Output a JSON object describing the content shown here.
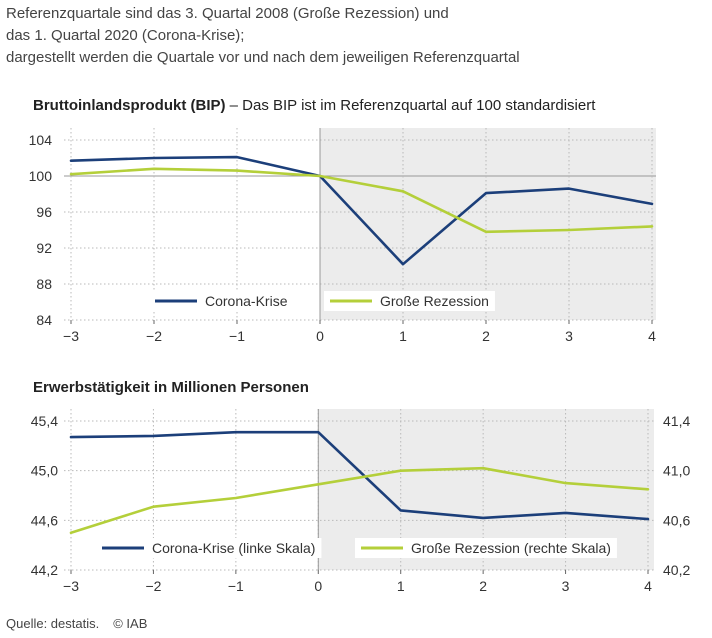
{
  "intro": {
    "line1": "Referenzquartale sind das 3. Quartal 2008 (Große Rezession) und",
    "line2": "das 1. Quartal 2020 (Corona-Krise);",
    "line3": "dargestellt werden die Quartale vor und nach dem jeweiligen Referenzquartal"
  },
  "colors": {
    "corona": "#1c3f7a",
    "rezession": "#b4cf3a",
    "shade": "#ececec",
    "grid": "#b9b9b9"
  },
  "chart_data": [
    {
      "type": "line",
      "title_bold": "Bruttoinlandsprodukt (BIP)",
      "title_rest": " – Das BIP ist im Referenzquartal auf 100 standardisiert",
      "x": [
        -3,
        -2,
        -1,
        0,
        1,
        2,
        3,
        4
      ],
      "x_tick_labels": [
        "−3",
        "−2",
        "−1",
        "0",
        "1",
        "2",
        "3",
        "4"
      ],
      "ylim": [
        84,
        104
      ],
      "y_ticks": [
        84,
        88,
        92,
        96,
        100,
        104
      ],
      "y_tick_labels": [
        "84",
        "88",
        "92",
        "96",
        "100",
        "104"
      ],
      "series": [
        {
          "name": "Corona-Krise",
          "values": [
            101.7,
            102.0,
            102.1,
            100.0,
            90.2,
            98.1,
            98.6,
            96.9
          ]
        },
        {
          "name": "Große Rezession",
          "values": [
            100.2,
            100.8,
            100.6,
            100.0,
            98.3,
            93.8,
            94.0,
            94.4
          ]
        }
      ],
      "shaded_from_x": 0,
      "reference_line_y": 100,
      "grid": true,
      "legend_position": "bottom"
    },
    {
      "type": "line",
      "title_bold": "Erwerbstätigkeit in Millionen Personen",
      "title_rest": "",
      "x": [
        -3,
        -2,
        -1,
        0,
        1,
        2,
        3,
        4
      ],
      "x_tick_labels": [
        "−3",
        "−2",
        "−1",
        "0",
        "1",
        "2",
        "3",
        "4"
      ],
      "ylim_left": [
        44.2,
        45.4
      ],
      "y_ticks_left": [
        44.2,
        44.6,
        45.0,
        45.4
      ],
      "y_tick_labels_left": [
        "44,2",
        "44,6",
        "45,0",
        "45,4"
      ],
      "ylim_right": [
        40.2,
        41.4
      ],
      "y_ticks_right": [
        40.2,
        40.6,
        41.0,
        41.4
      ],
      "y_tick_labels_right": [
        "40,2",
        "40,6",
        "41,0",
        "41,4"
      ],
      "series": [
        {
          "name": "Corona-Krise (linke Skala)",
          "axis": "left",
          "values": [
            45.27,
            45.28,
            45.31,
            45.31,
            44.68,
            44.62,
            44.66,
            44.61
          ]
        },
        {
          "name": "Große Rezession (rechte Skala)",
          "axis": "right",
          "values": [
            40.5,
            40.71,
            40.78,
            40.89,
            41.0,
            41.02,
            40.9,
            40.85
          ]
        }
      ],
      "shaded_from_x": 0,
      "grid": true,
      "legend_position": "bottom"
    }
  ],
  "footer": {
    "source": "Quelle: destatis.",
    "copyright": "© IAB"
  }
}
